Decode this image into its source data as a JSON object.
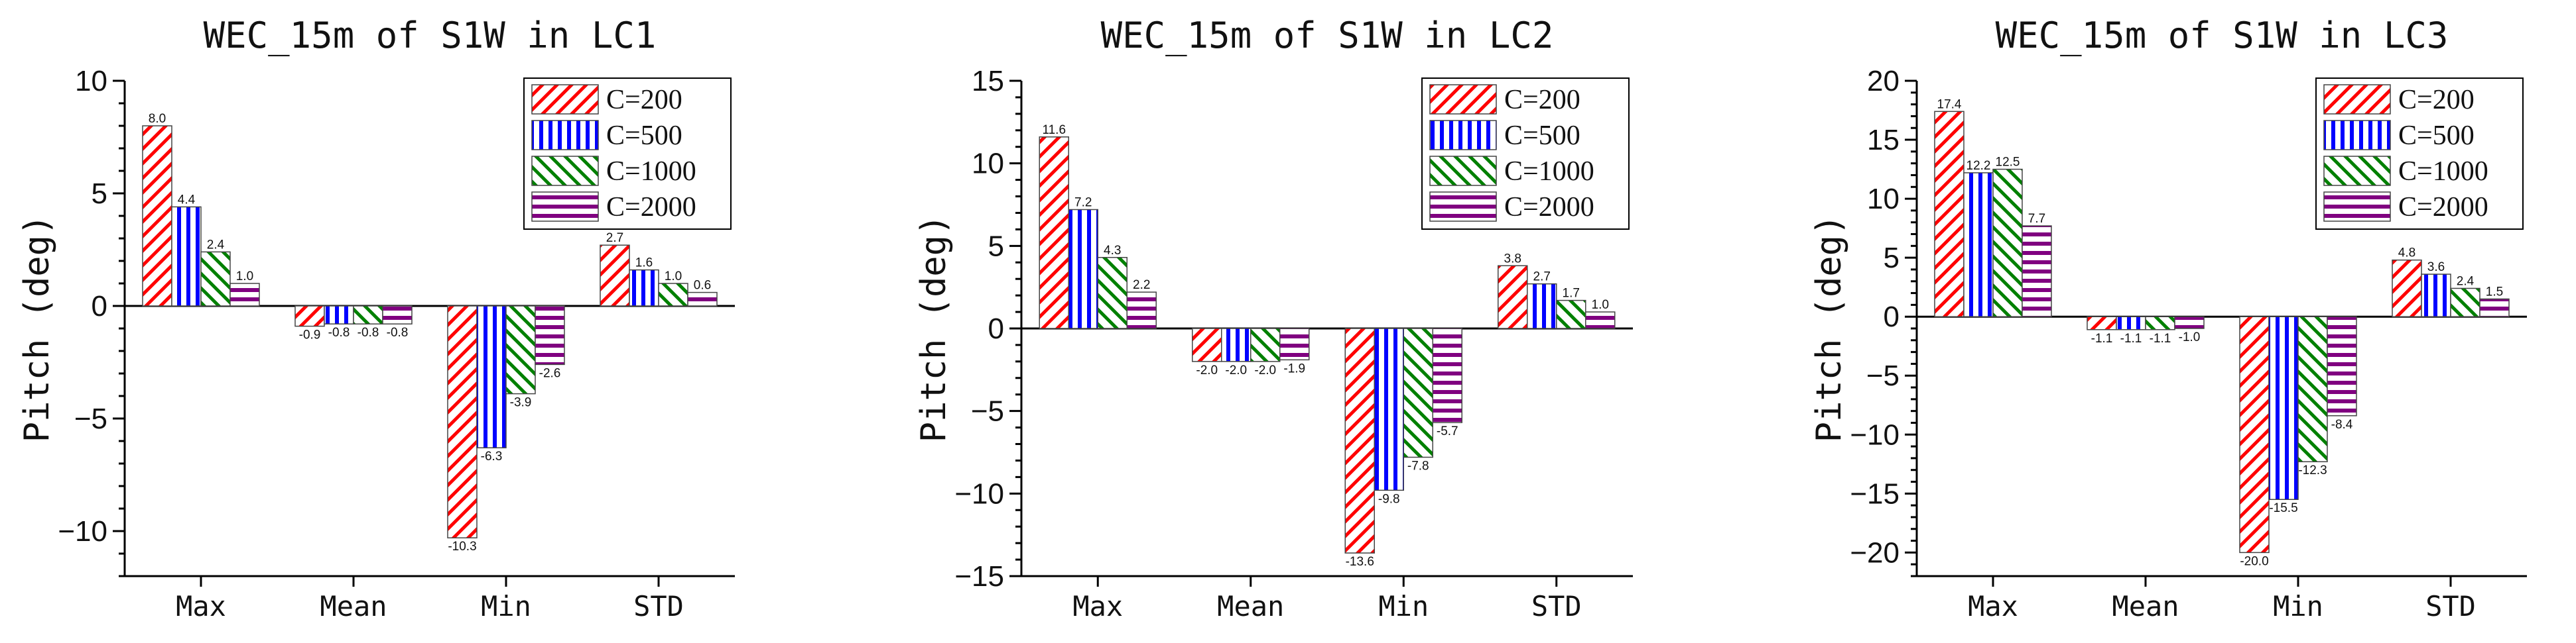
{
  "chart_data": [
    {
      "type": "bar",
      "title": "WEC_15m of S1W in LC1",
      "ylabel": "Pitch (deg)",
      "xlabel": "",
      "categories": [
        "Max",
        "Mean",
        "Min",
        "STD"
      ],
      "ylim": [
        -12,
        10
      ],
      "yticks": [
        -10,
        -5,
        0,
        5,
        10
      ],
      "yticks_minor_step": 1,
      "legend_position": "top-right",
      "series": [
        {
          "name": "C=200",
          "values": [
            8.0,
            -0.9,
            -10.3,
            2.7
          ],
          "labels": [
            "8.0",
            "-0.9",
            "-10.3",
            "2.7"
          ]
        },
        {
          "name": "C=500",
          "values": [
            4.4,
            -0.8,
            -6.3,
            1.6
          ],
          "labels": [
            "4.4",
            "-0.8",
            "-6.3",
            "1.6"
          ]
        },
        {
          "name": "C=1000",
          "values": [
            2.4,
            -0.8,
            -3.9,
            1.0
          ],
          "labels": [
            "2.4",
            "-0.8",
            "-3.9",
            "1.0"
          ]
        },
        {
          "name": "C=2000",
          "values": [
            1.0,
            -0.8,
            -2.6,
            0.6
          ],
          "labels": [
            "1.0",
            "-0.8",
            "-2.6",
            "0.6"
          ]
        }
      ]
    },
    {
      "type": "bar",
      "title": "WEC_15m of S1W in LC2",
      "ylabel": "Pitch (deg)",
      "xlabel": "",
      "categories": [
        "Max",
        "Mean",
        "Min",
        "STD"
      ],
      "ylim": [
        -15,
        15
      ],
      "yticks": [
        -15,
        -10,
        -5,
        0,
        5,
        10,
        15
      ],
      "yticks_minor_step": 1,
      "legend_position": "top-right",
      "series": [
        {
          "name": "C=200",
          "values": [
            11.6,
            -2.0,
            -13.6,
            3.8
          ],
          "labels": [
            "11.6",
            "-2.0",
            "-13.6",
            "3.8"
          ]
        },
        {
          "name": "C=500",
          "values": [
            7.2,
            -2.0,
            -9.8,
            2.7
          ],
          "labels": [
            "7.2",
            "-2.0",
            "-9.8",
            "2.7"
          ]
        },
        {
          "name": "C=1000",
          "values": [
            4.3,
            -2.0,
            -7.8,
            1.7
          ],
          "labels": [
            "4.3",
            "-2.0",
            "-7.8",
            "1.7"
          ]
        },
        {
          "name": "C=2000",
          "values": [
            2.2,
            -1.9,
            -5.7,
            1.0
          ],
          "labels": [
            "2.2",
            "-1.9",
            "-5.7",
            "1.0"
          ]
        }
      ]
    },
    {
      "type": "bar",
      "title": "WEC_15m of S1W in LC3",
      "ylabel": "Pitch (deg)",
      "xlabel": "",
      "categories": [
        "Max",
        "Mean",
        "Min",
        "STD"
      ],
      "ylim": [
        -22,
        20
      ],
      "yticks": [
        -20,
        -15,
        -10,
        -5,
        0,
        5,
        10,
        15,
        20
      ],
      "yticks_minor_step": 1,
      "legend_position": "top-right",
      "series": [
        {
          "name": "C=200",
          "values": [
            17.4,
            -1.1,
            -20.0,
            4.8
          ],
          "labels": [
            "17.4",
            "-1.1",
            "-20.0",
            "4.8"
          ]
        },
        {
          "name": "C=500",
          "values": [
            12.2,
            -1.1,
            -15.5,
            3.6
          ],
          "labels": [
            "12.2",
            "-1.1",
            "-15.5",
            "3.6"
          ]
        },
        {
          "name": "C=1000",
          "values": [
            12.5,
            -1.1,
            -12.3,
            2.4
          ],
          "labels": [
            "12.5",
            "-1.1",
            "-12.3",
            "2.4"
          ]
        },
        {
          "name": "C=2000",
          "values": [
            7.7,
            -1.0,
            -8.4,
            1.5
          ],
          "labels": [
            "7.7",
            "-1.0",
            "-8.4",
            "1.5"
          ]
        }
      ]
    }
  ],
  "style": {
    "series_colors": [
      "#ff0000",
      "#0000ff",
      "#008000",
      "#800080"
    ],
    "series_patterns": [
      "diag-right",
      "vertical",
      "diag-left",
      "horizontal"
    ]
  }
}
